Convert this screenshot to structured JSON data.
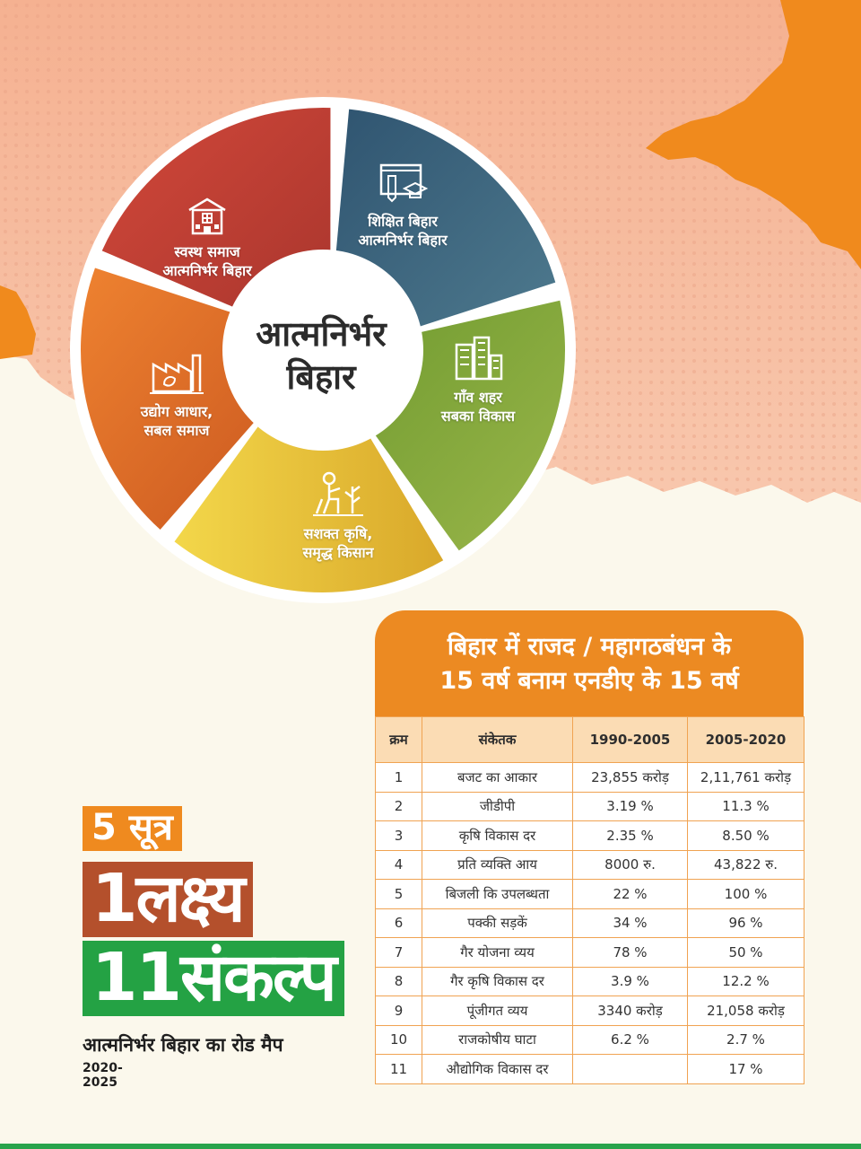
{
  "wheel": {
    "center_line1": "आत्मनिर्भर",
    "center_line2": "बिहार",
    "segments": [
      {
        "line1": "स्वस्थ समाज",
        "line2": "आत्मनिर्भर बिहार",
        "icon": "hospital-icon",
        "color": "#c23f30"
      },
      {
        "line1": "शिक्षित बिहार",
        "line2": "आत्मनिर्भर बिहार",
        "icon": "education-icon",
        "color": "#3d6580"
      },
      {
        "line1": "गाँव शहर",
        "line2": "सबका विकास",
        "icon": "city-icon",
        "color": "#7a9a34"
      },
      {
        "line1": "सशक्त कृषि,",
        "line2": "समृद्ध किसान",
        "icon": "farmer-icon",
        "color": "#e5b62c"
      },
      {
        "line1": "उद्योग आधार,",
        "line2": "सबल समाज",
        "icon": "factory-icon",
        "color": "#de6b23"
      }
    ]
  },
  "comparison": {
    "title_line1": "बिहार में राजद / महागठबंधन के",
    "title_line2": "15 वर्ष बनाम एनडीए के 15 वर्ष",
    "columns": [
      "क्रम",
      "संकेतक",
      "1990-2005",
      "2005-2020"
    ],
    "rows": [
      [
        "1",
        "बजट का आकार",
        "23,855 करोड़",
        "2,11,761 करोड़"
      ],
      [
        "2",
        "जीडीपी",
        "3.19 %",
        "11.3 %"
      ],
      [
        "3",
        "कृषि विकास दर",
        "2.35 %",
        "8.50 %"
      ],
      [
        "4",
        "प्रति व्यक्ति आय",
        "8000 रु.",
        "43,822 रु."
      ],
      [
        "5",
        "बिजली कि उपलब्धता",
        "22 %",
        "100 %"
      ],
      [
        "6",
        "पक्की सड़कें",
        "34 %",
        "96 %"
      ],
      [
        "7",
        "गैर योजना व्यय",
        "78 %",
        "50 %"
      ],
      [
        "8",
        "गैर कृषि विकास दर",
        "3.9 %",
        "12.2 %"
      ],
      [
        "9",
        "पूंजीगत व्यय",
        "3340 करोड़",
        "21,058 करोड़"
      ],
      [
        "10",
        "राजकोषीय घाटा",
        "6.2 %",
        "2.7 %"
      ],
      [
        "11",
        "औद्योगिक विकास दर",
        "",
        "17 %"
      ]
    ]
  },
  "badge": {
    "sutra": "5 सूत्र",
    "lakshya": "1लक्ष्य",
    "sankalp": "11संकल्प",
    "roadmap": "आत्मनिर्भर बिहार का रोड मैप",
    "years": "2020-2025"
  },
  "colors": {
    "orange": "#ec8a22",
    "peach": "#f6b08e",
    "green": "#28a44c",
    "brown": "#b4502c"
  }
}
